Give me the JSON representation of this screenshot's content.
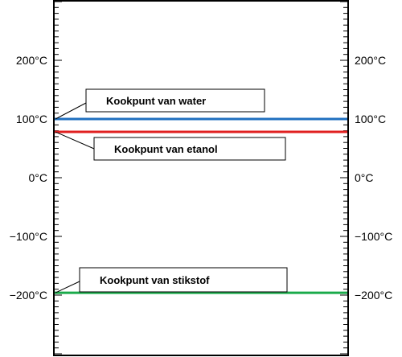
{
  "chart_data": {
    "type": "line",
    "ylim": [
      -300,
      300
    ],
    "grid": false,
    "y_ticks": [
      {
        "value": 200,
        "label": "200°C"
      },
      {
        "value": 100,
        "label": "100°C"
      },
      {
        "value": 0,
        "label": "0°C"
      },
      {
        "value": -100,
        "label": "−100°C"
      },
      {
        "value": -200,
        "label": "−200°C"
      }
    ],
    "series": [
      {
        "id": "water",
        "value": 100,
        "color": "#1f6fbf",
        "callout": "Kookpunt van water"
      },
      {
        "id": "ethanol",
        "value": 78,
        "color": "#e02020",
        "callout": "Kookpunt van etanol"
      },
      {
        "id": "nitrogen",
        "value": -196,
        "color": "#1aaa4a",
        "callout": "Kookpunt van stikstof"
      }
    ]
  }
}
